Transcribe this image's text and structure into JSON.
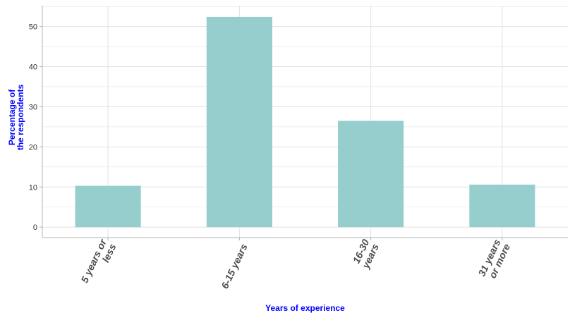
{
  "chart_data": {
    "type": "bar",
    "title": "",
    "xlabel": "Years of experience",
    "ylabel_lines": [
      "Percentage of",
      "the respondents"
    ],
    "categories": [
      [
        "5 years or",
        "less"
      ],
      [
        "6-15 years"
      ],
      [
        "16-30",
        "years"
      ],
      [
        "31 years",
        "or more"
      ]
    ],
    "values": [
      10.3,
      52.4,
      26.5,
      10.6
    ],
    "ylim": [
      -2.6,
      55.2
    ],
    "yticks": [
      0,
      10,
      20,
      30,
      40,
      50
    ],
    "grid": true,
    "legend": "none",
    "bar_color": "#96cecd",
    "grid_color": "#e2e2e2",
    "axis_title_color": "#0000ff"
  }
}
